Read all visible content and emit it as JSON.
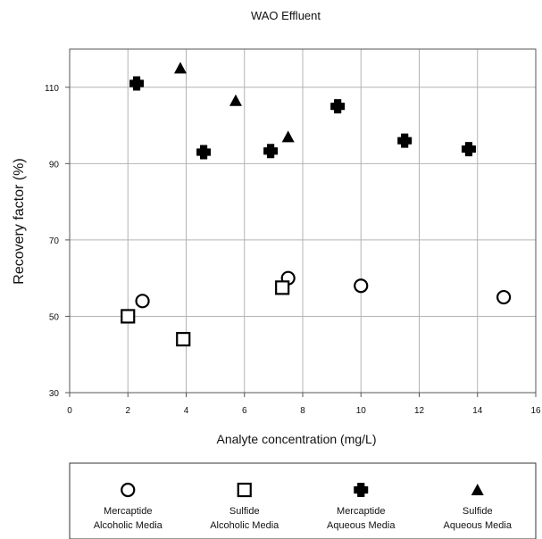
{
  "chart_data": {
    "type": "scatter",
    "title": "WAO Effluent",
    "xlabel": "Analyte concentration (mg/L)",
    "ylabel": "Recovery factor (%)",
    "xlim": [
      0,
      16
    ],
    "ylim": [
      30,
      120
    ],
    "x_ticks": [
      "0",
      "2",
      "4",
      "6",
      "8",
      "10",
      "12",
      "14",
      "16"
    ],
    "y_ticks": [
      "30",
      "50",
      "70",
      "90",
      "110"
    ],
    "grid": true,
    "legend_position": "bottom",
    "series": [
      {
        "name_line1": "Mercaptide",
        "name_line2": "Alcoholic Media",
        "marker": "open-circle",
        "color": "#000000",
        "points": [
          {
            "x": 2.5,
            "y": 54
          },
          {
            "x": 7.5,
            "y": 60
          },
          {
            "x": 10.0,
            "y": 58
          },
          {
            "x": 14.9,
            "y": 55
          }
        ]
      },
      {
        "name_line1": "Sulfide",
        "name_line2": "Alcoholic Media",
        "marker": "open-square",
        "color": "#000000",
        "points": [
          {
            "x": 2.0,
            "y": 50
          },
          {
            "x": 3.9,
            "y": 44
          },
          {
            "x": 7.3,
            "y": 57.5
          }
        ]
      },
      {
        "name_line1": "Mercaptide",
        "name_line2": "Aqueous Media",
        "marker": "filled-cross",
        "color": "#000000",
        "points": [
          {
            "x": 2.3,
            "y": 111
          },
          {
            "x": 4.6,
            "y": 93
          },
          {
            "x": 6.9,
            "y": 93.3
          },
          {
            "x": 9.2,
            "y": 105
          },
          {
            "x": 11.5,
            "y": 96
          },
          {
            "x": 13.7,
            "y": 93.8
          }
        ]
      },
      {
        "name_line1": "Sulfide",
        "name_line2": "Aqueous Media",
        "marker": "filled-triangle",
        "color": "#000000",
        "points": [
          {
            "x": 3.8,
            "y": 115
          },
          {
            "x": 5.7,
            "y": 106.5
          },
          {
            "x": 7.5,
            "y": 97
          }
        ]
      }
    ]
  }
}
